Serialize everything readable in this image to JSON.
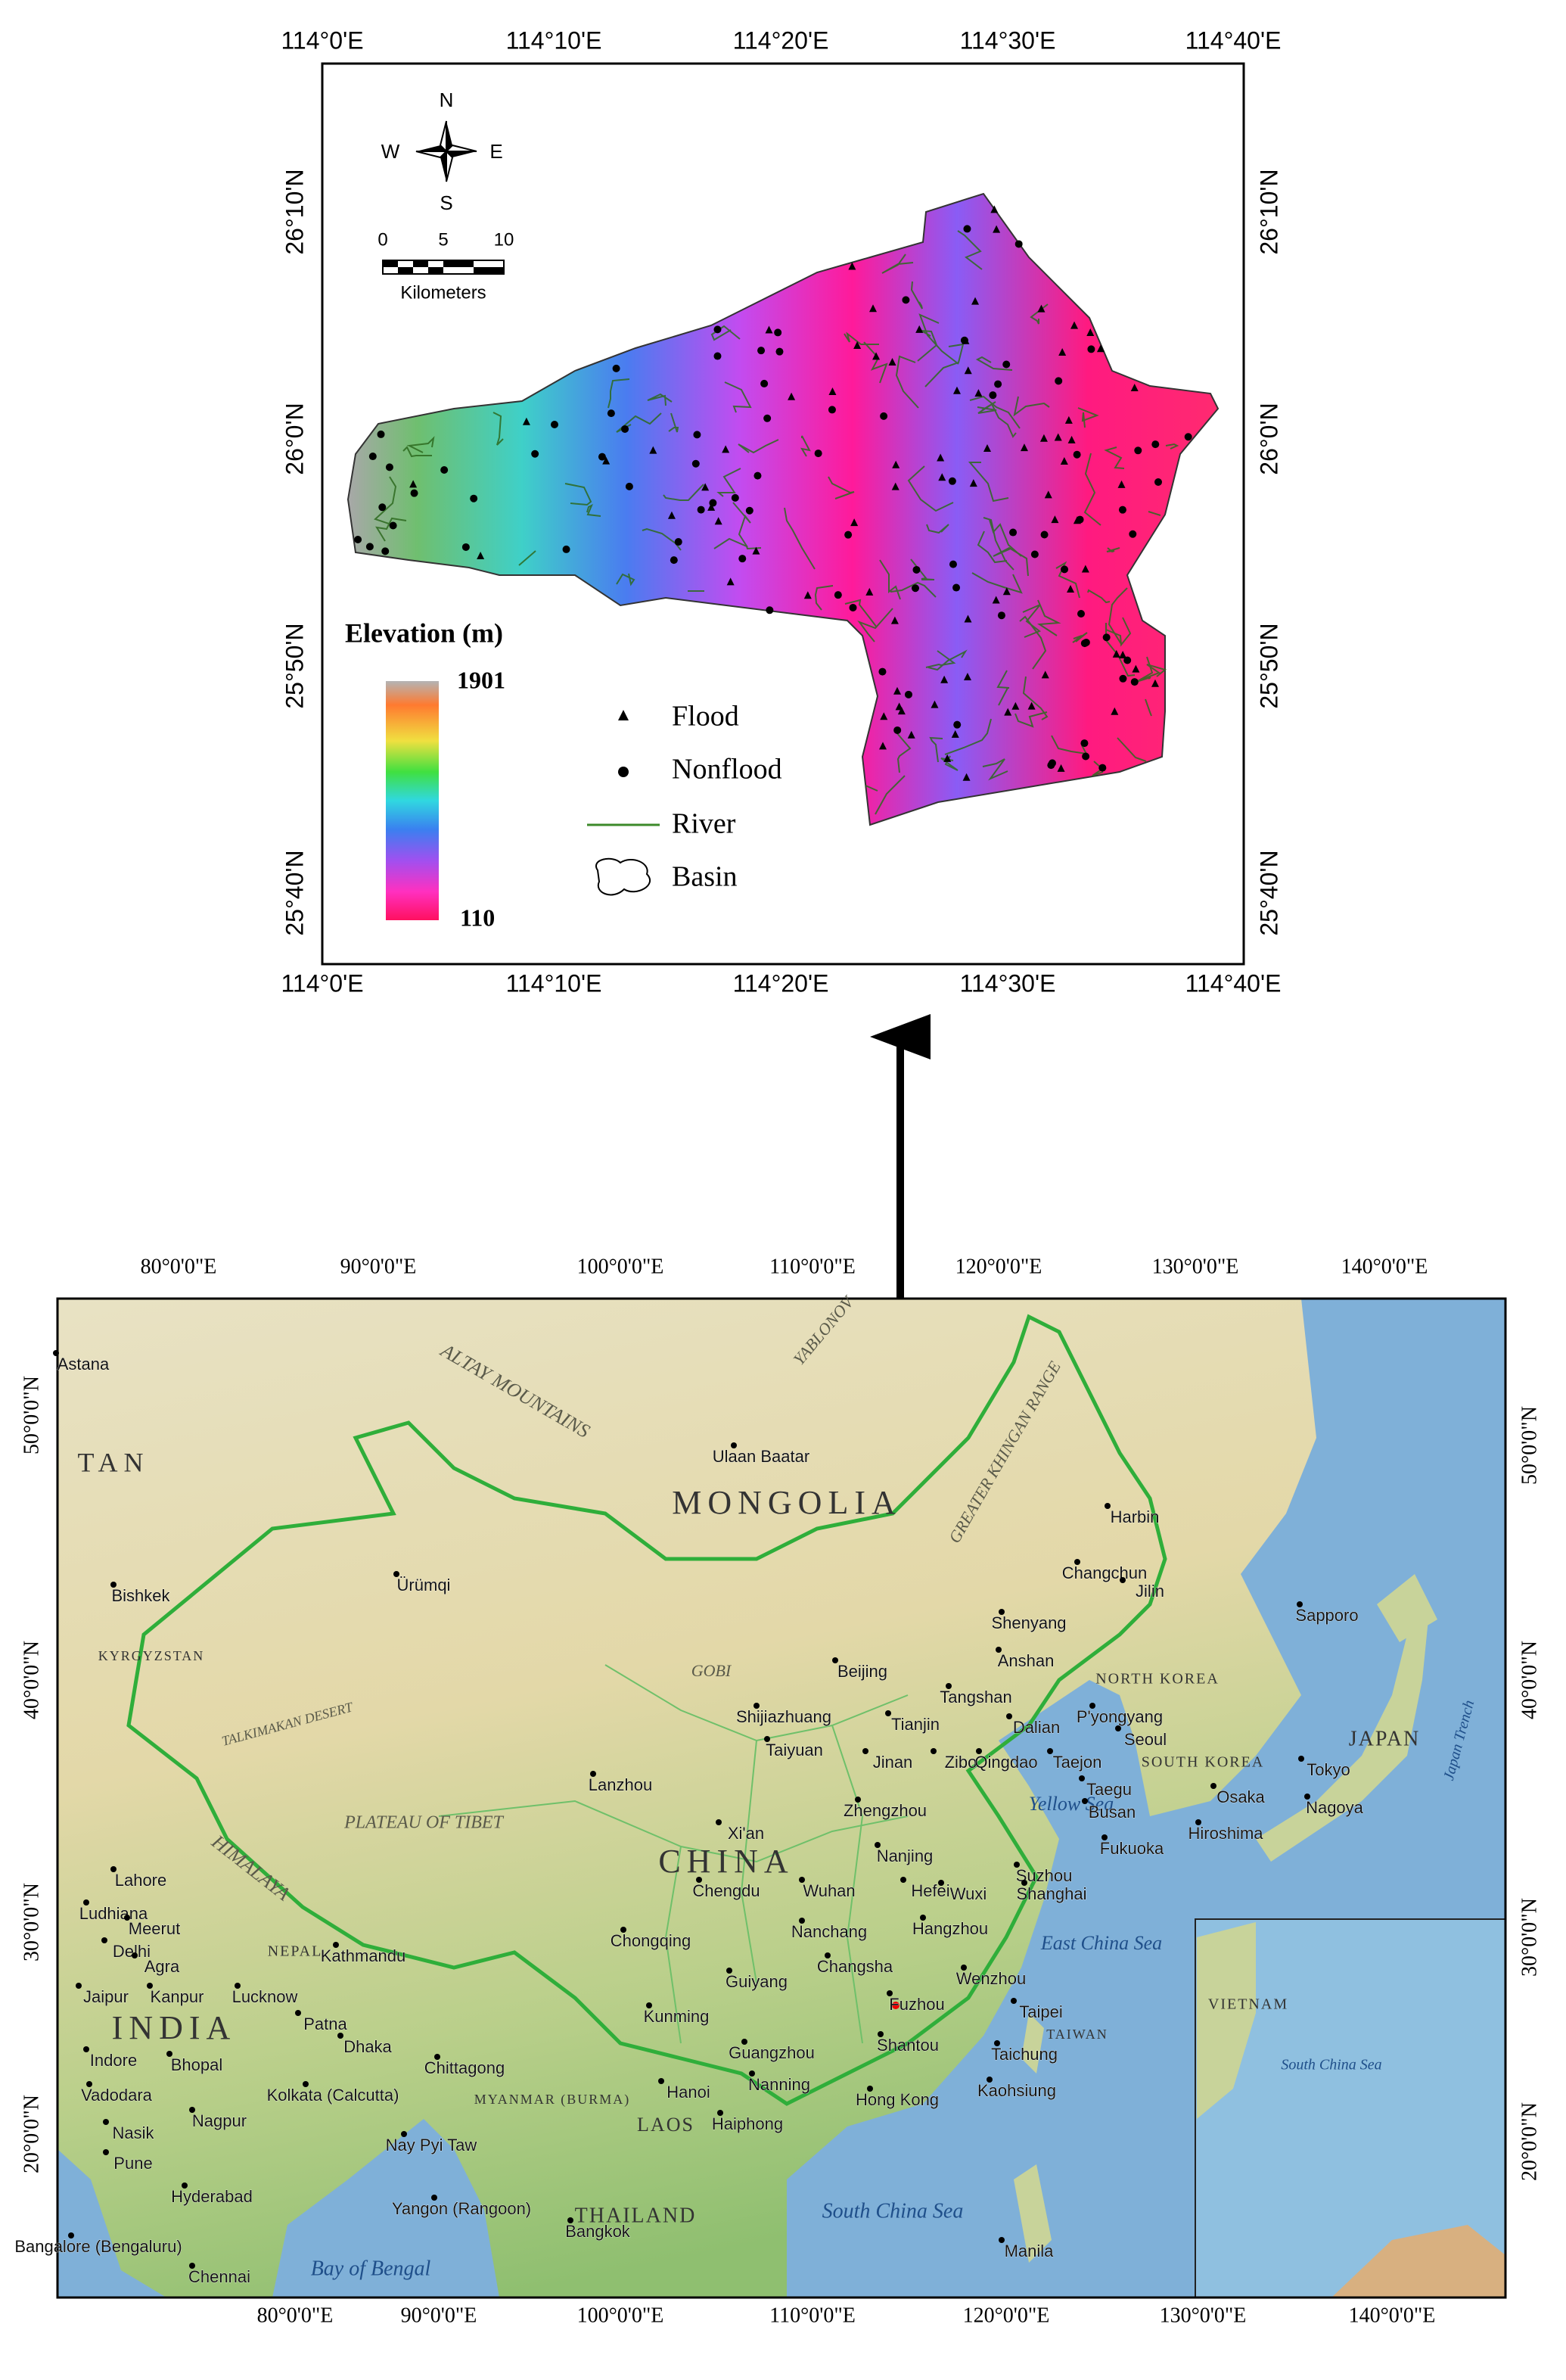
{
  "upper_map": {
    "top_lon_labels": [
      "114°0'E",
      "114°10'E",
      "114°20'E",
      "114°30'E",
      "114°40'E"
    ],
    "bottom_lon_labels": [
      "114°0'E",
      "114°10'E",
      "114°20'E",
      "114°30'E",
      "114°40'E"
    ],
    "left_lat_labels": [
      "26°10'N",
      "26°0'N",
      "25°50'N",
      "25°40'N"
    ],
    "right_lat_labels": [
      "26°10'N",
      "26°0'N",
      "25°50'N",
      "25°40'N"
    ],
    "north_arrow": {
      "n": "N",
      "s": "S",
      "e": "E",
      "w": "W"
    },
    "scale_bar": {
      "ticks": [
        0,
        5,
        10
      ],
      "unit": "Kilometers"
    },
    "legend": {
      "title": "Elevation (m)",
      "max": 1901,
      "min": 110,
      "items": [
        "Flood",
        "Nonflood",
        "River",
        "Basin"
      ]
    }
  },
  "lower_map": {
    "top_lon_labels": [
      "80°0'0\"E",
      "90°0'0\"E",
      "100°0'0\"E",
      "110°0'0\"E",
      "120°0'0\"E",
      "130°0'0\"E",
      "140°0'0\"E"
    ],
    "bottom_lon_labels": [
      "80°0'0\"E",
      "90°0'0\"E",
      "100°0'0\"E",
      "110°0'0\"E",
      "120°0'0\"E",
      "130°0'0\"E",
      "140°0'0\"E"
    ],
    "left_lat_labels": [
      "50°0'0\"N",
      "40°0'0\"N",
      "30°0'0\"N",
      "20°0'0\"N"
    ],
    "right_lat_labels": [
      "50°0'0\"N",
      "40°0'0\"N",
      "30°0'0\"N",
      "20°0'0\"N"
    ],
    "countries": [
      "MONGOLIA",
      "CHINA",
      "INDIA",
      "JAPAN",
      "TAN",
      "THAILAND",
      "LAOS",
      "NEPAL",
      "NORTH KOREA",
      "SOUTH KOREA",
      "TAIWAN",
      "MYANMAR (BURMA)",
      "VIETNAM",
      "KYRGYZSTAN"
    ],
    "regions": [
      "ALTAY MOUNTAINS",
      "GOBI",
      "PLATEAU OF TIBET",
      "TALKIMAKAN DESERT",
      "HIMALAYA",
      "GREATER KHINGAN RANGE",
      "YABLONOV",
      "Yellow Sea",
      "East China Sea",
      "South China Sea",
      "Bay of Bengal",
      "Japan Trench",
      "South China Sea"
    ],
    "cities": [
      "Astana",
      "Bishkek",
      "Ürümqi",
      "Ulaan Baatar",
      "Harbin",
      "Changchun",
      "Jilin",
      "Sapporo",
      "Shenyang",
      "Anshan",
      "Beijing",
      "Tangshan",
      "Dalian",
      "Tianjin",
      "Shijiazhuang",
      "Taiyuan",
      "Jinan",
      "Zibo",
      "Qingdao",
      "Taejon",
      "Seoul",
      "P'yongyang",
      "Taegu",
      "Busan",
      "Tokyo",
      "Osaka",
      "Nagoya",
      "Hiroshima",
      "Fukuoka",
      "Lanzhou",
      "Xi'an",
      "Zhengzhou",
      "Nanjing",
      "Suzhou",
      "Shanghai",
      "Chengdu",
      "Wuhan",
      "Hefei",
      "Wuxi",
      "Chongqing",
      "Nanchang",
      "Hangzhou",
      "Changsha",
      "Wenzhou",
      "Guiyang",
      "Kunming",
      "Fuzhou",
      "Taipei",
      "Taichung",
      "Shantou",
      "Guangzhou",
      "Nanning",
      "Hanoi",
      "Hong Kong",
      "Kaohsiung",
      "Haiphong",
      "Kathmandu",
      "Lahore",
      "Ludhiana",
      "Meerut",
      "Delhi",
      "Agra",
      "Jaipur",
      "Kanpur",
      "Lucknow",
      "Patna",
      "Dhaka",
      "Kolkata (Calcutta)",
      "Chittagong",
      "Indore",
      "Bhopal",
      "Vadodara",
      "Nagpur",
      "Nasik",
      "Pune",
      "Hyderabad",
      "Nay Pyi Taw",
      "Yangon (Rangoon)",
      "Bangkok",
      "Bangalore (Bengaluru)",
      "Chennai",
      "Manila"
    ]
  }
}
